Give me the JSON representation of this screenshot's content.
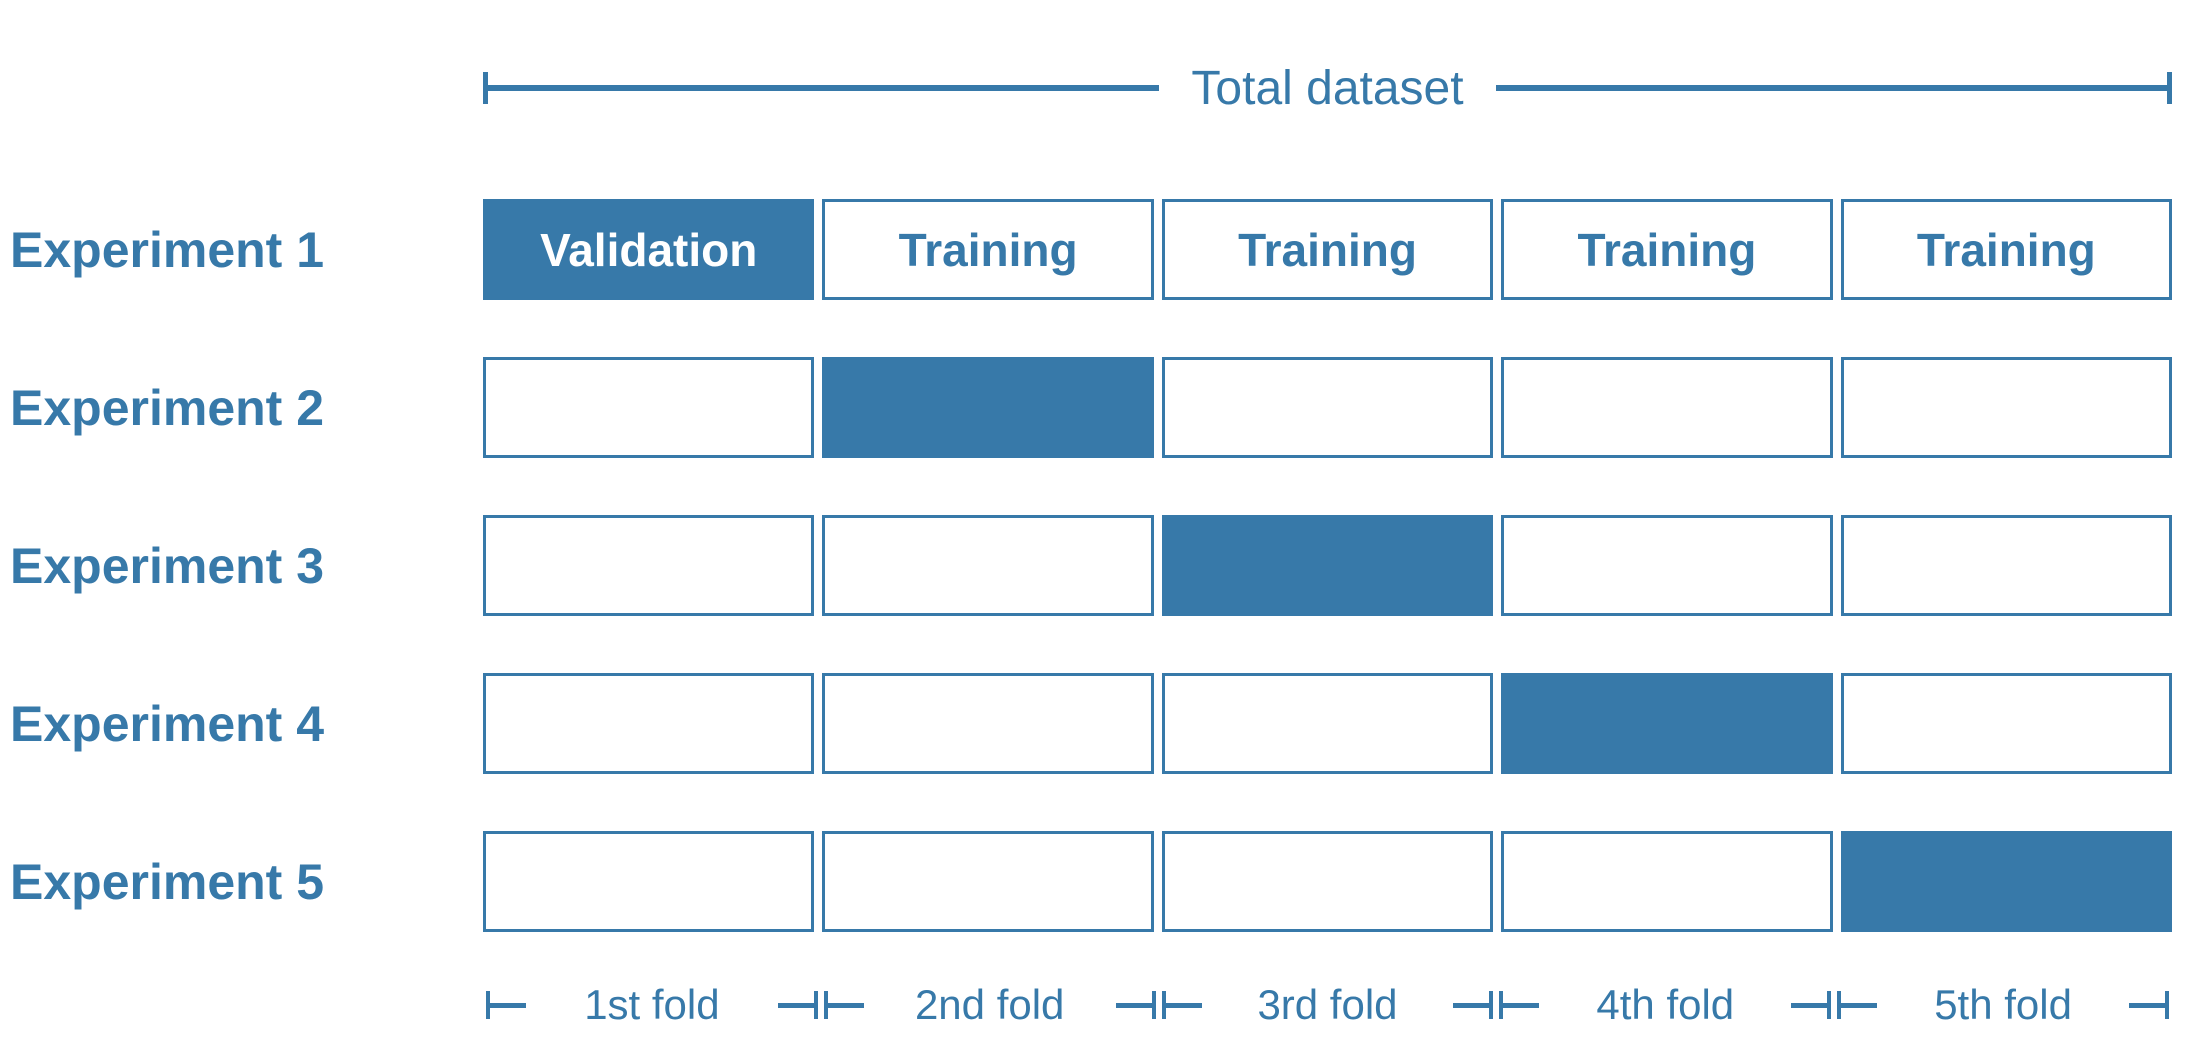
{
  "title": "Total dataset",
  "colors": {
    "accent": "#3779A9",
    "cell_fill": "#3779A9",
    "cell_border": "#3779A9",
    "filled_cell_text": "#FFFFFF",
    "background": "#FFFFFF"
  },
  "rows": [
    {
      "label": "Experiment 1",
      "cells": [
        {
          "text": "Validation",
          "filled": true
        },
        {
          "text": "Training",
          "filled": false
        },
        {
          "text": "Training",
          "filled": false
        },
        {
          "text": "Training",
          "filled": false
        },
        {
          "text": "Training",
          "filled": false
        }
      ]
    },
    {
      "label": "Experiment 2",
      "cells": [
        {
          "text": "",
          "filled": false
        },
        {
          "text": "",
          "filled": true
        },
        {
          "text": "",
          "filled": false
        },
        {
          "text": "",
          "filled": false
        },
        {
          "text": "",
          "filled": false
        }
      ]
    },
    {
      "label": "Experiment 3",
      "cells": [
        {
          "text": "",
          "filled": false
        },
        {
          "text": "",
          "filled": false
        },
        {
          "text": "",
          "filled": true
        },
        {
          "text": "",
          "filled": false
        },
        {
          "text": "",
          "filled": false
        }
      ]
    },
    {
      "label": "Experiment 4",
      "cells": [
        {
          "text": "",
          "filled": false
        },
        {
          "text": "",
          "filled": false
        },
        {
          "text": "",
          "filled": false
        },
        {
          "text": "",
          "filled": true
        },
        {
          "text": "",
          "filled": false
        }
      ]
    },
    {
      "label": "Experiment 5",
      "cells": [
        {
          "text": "",
          "filled": false
        },
        {
          "text": "",
          "filled": false
        },
        {
          "text": "",
          "filled": false
        },
        {
          "text": "",
          "filled": false
        },
        {
          "text": "",
          "filled": true
        }
      ]
    }
  ],
  "folds": [
    "1st fold",
    "2nd fold",
    "3rd fold",
    "4th fold",
    "5th fold"
  ],
  "layout_meta": {
    "row_top_start": 199,
    "row_pitch": 158
  }
}
